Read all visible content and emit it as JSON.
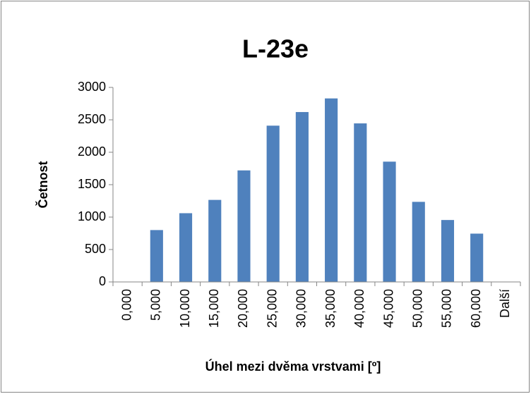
{
  "chart_data": {
    "type": "bar",
    "title": "L-23e",
    "x_label": "Úhel mezi dvěma vrstvami [º]",
    "y_label": "Četnost",
    "categories": [
      "0,000",
      "5,000",
      "10,000",
      "15,000",
      "20,000",
      "25,000",
      "30,000",
      "35,000",
      "40,000",
      "45,000",
      "50,000",
      "55,000",
      "60,000",
      "Další"
    ],
    "values": [
      0,
      800,
      1060,
      1265,
      1720,
      2410,
      2620,
      2830,
      2445,
      1855,
      1235,
      955,
      745,
      0
    ],
    "color": "#4f81bd",
    "ylim": [
      0,
      3000
    ],
    "yticks": [
      0,
      500,
      1000,
      1500,
      2000,
      2500,
      3000
    ],
    "grid": false
  }
}
